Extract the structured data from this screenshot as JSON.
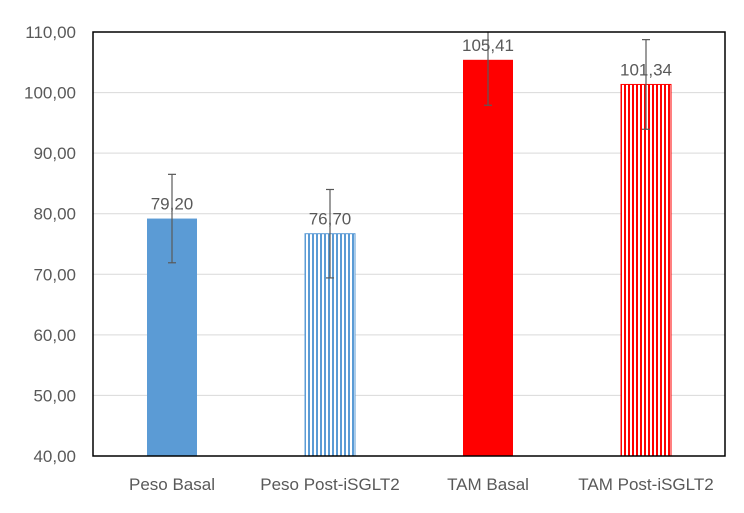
{
  "chart_data": {
    "type": "bar",
    "title": "",
    "xlabel": "",
    "ylabel": "",
    "ylim": [
      40,
      110
    ],
    "yticks": [
      40,
      50,
      60,
      70,
      80,
      90,
      100,
      110
    ],
    "ytick_labels": [
      "40,00",
      "50,00",
      "60,00",
      "70,00",
      "80,00",
      "90,00",
      "100,00",
      "110,00"
    ],
    "grid": true,
    "categories": [
      "Peso Basal",
      "Peso Post-iSGLT2",
      "TAM Basal",
      "TAM Post-iSGLT2"
    ],
    "values": [
      79.2,
      76.7,
      105.41,
      101.34
    ],
    "value_labels": [
      "79,20",
      "76,70",
      "105,41",
      "101,34"
    ],
    "errors": [
      7.3,
      7.3,
      7.5,
      7.4
    ],
    "styles": [
      "solid",
      "striped",
      "solid",
      "striped"
    ],
    "colors": [
      "#5b9bd5",
      "#5b9bd5",
      "#ff0000",
      "#ff0000"
    ]
  }
}
